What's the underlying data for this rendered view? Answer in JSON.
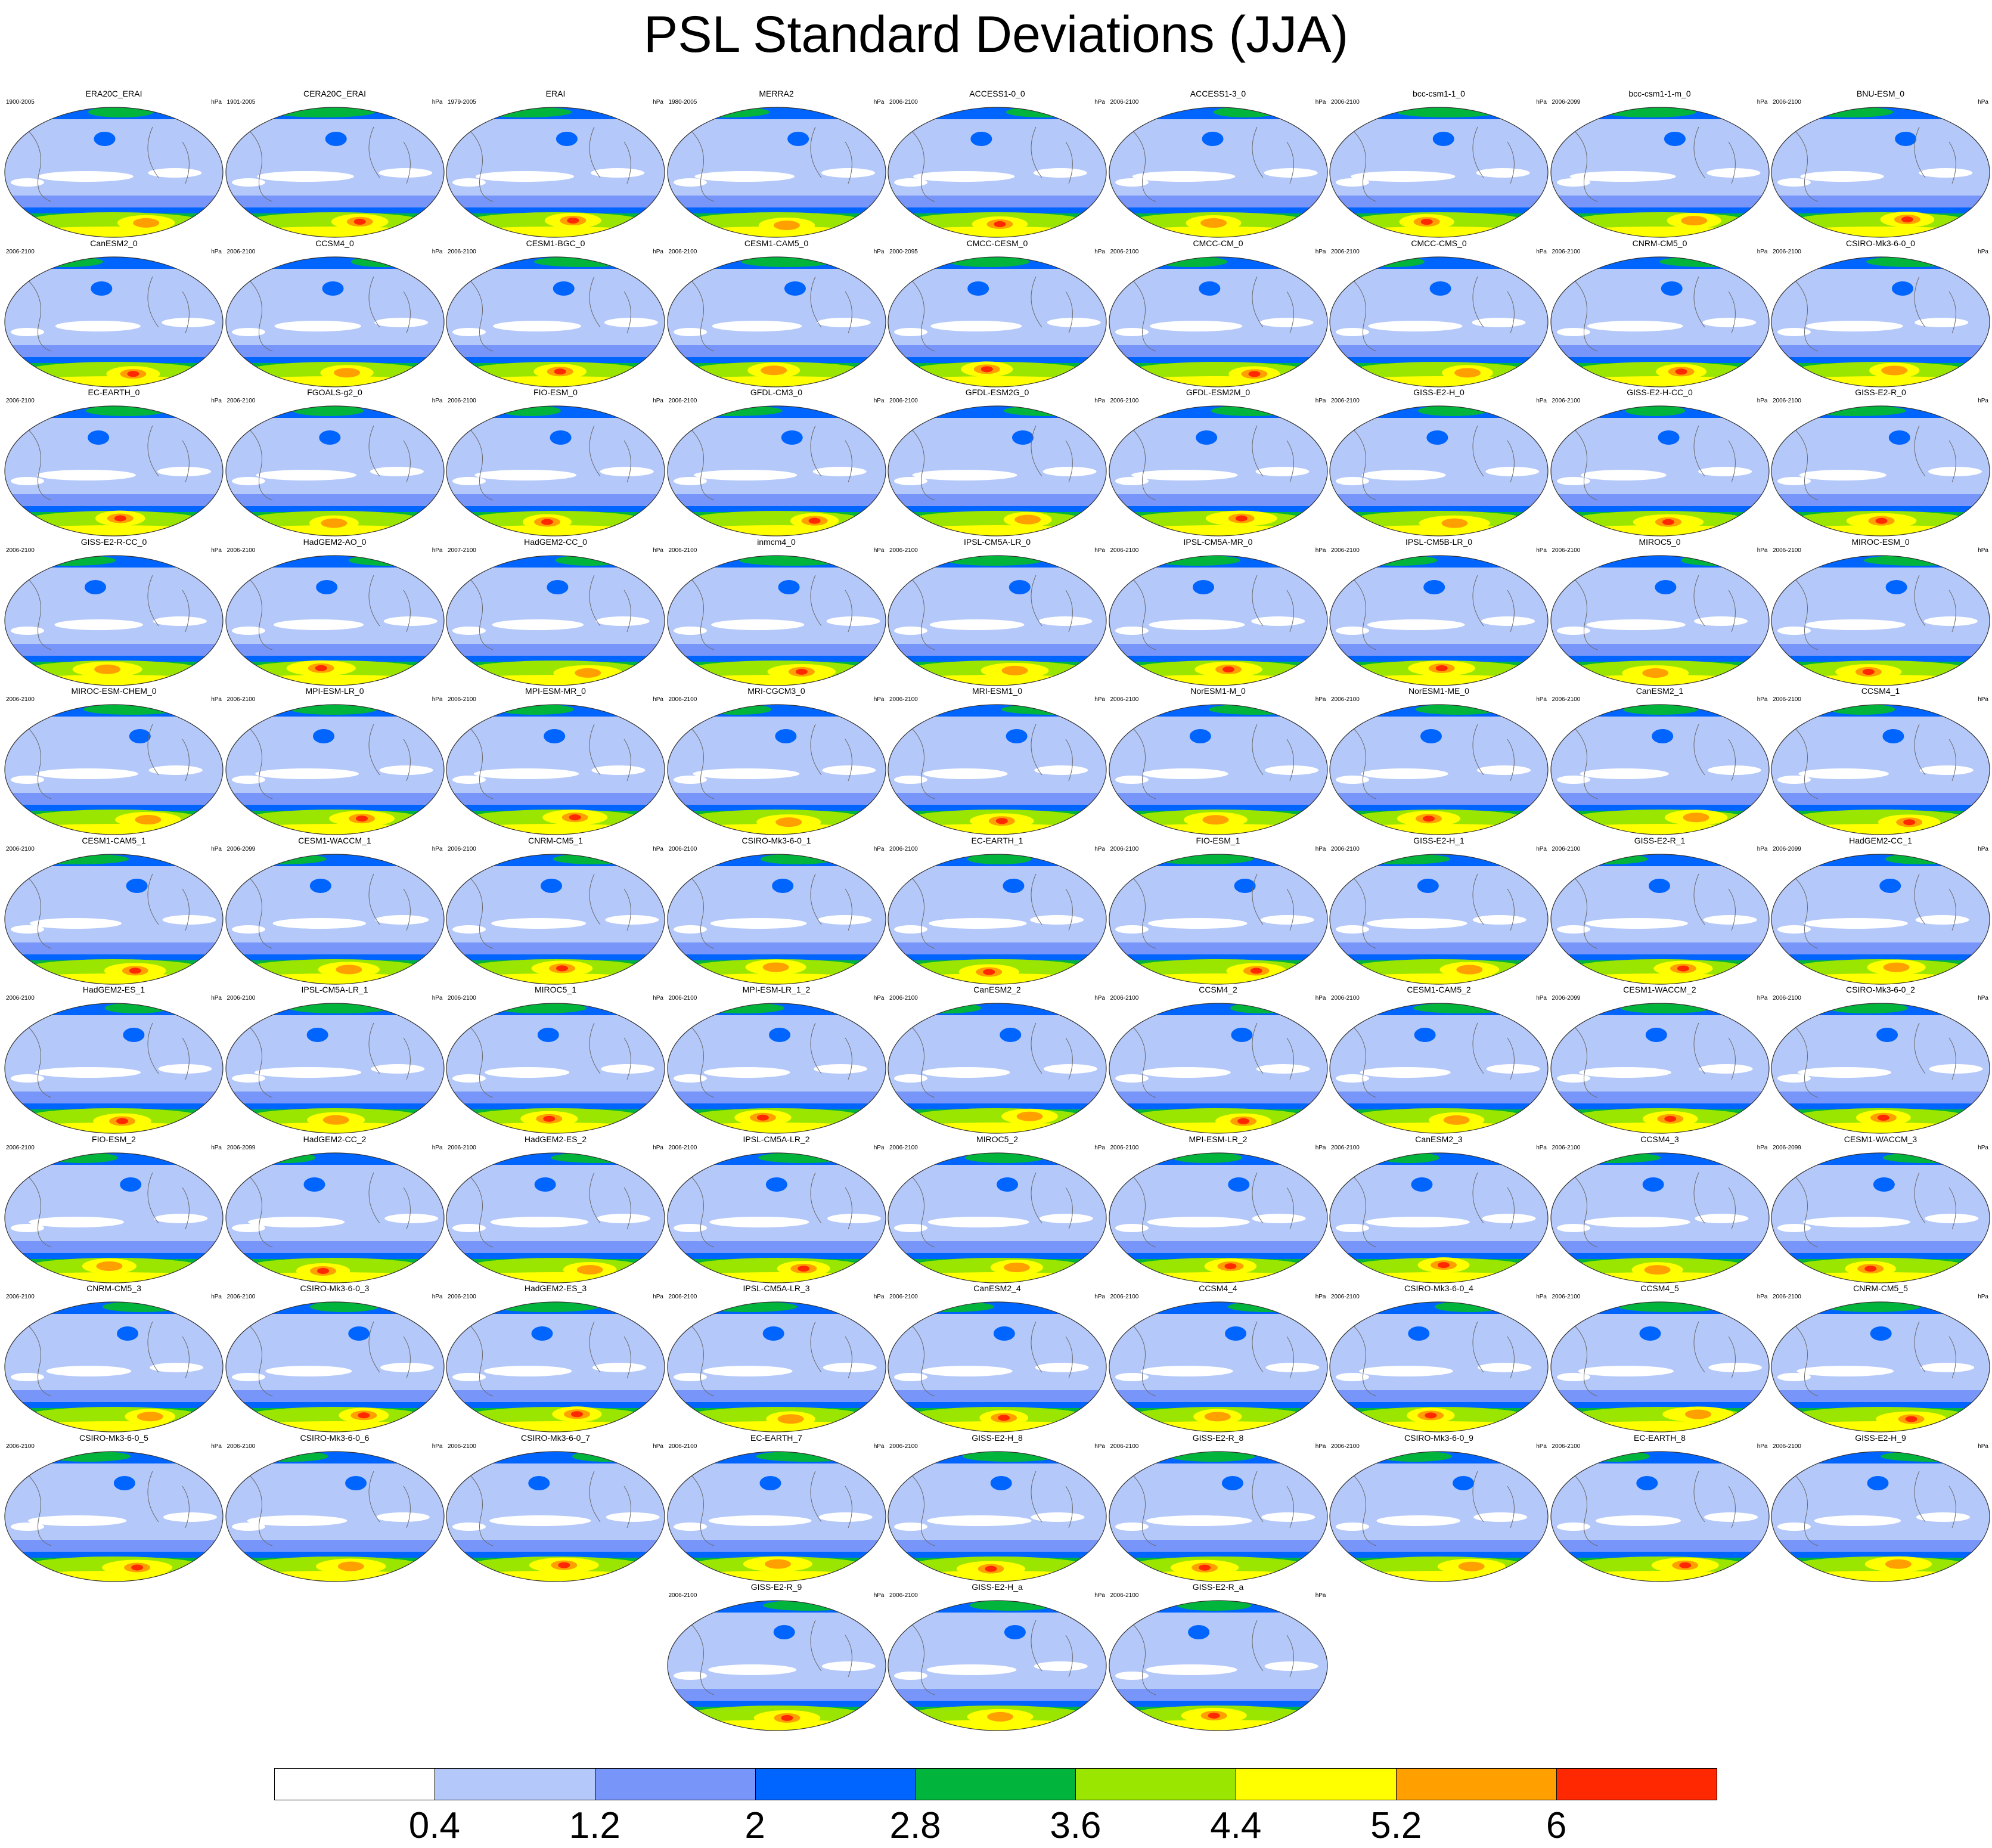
{
  "title": "PSL Standard Deviations (JJA)",
  "unit_label": "hPa",
  "colorbar": {
    "colors": [
      "#ffffff",
      "#b4c8fa",
      "#7896fa",
      "#0064ff",
      "#00b43c",
      "#9be600",
      "#ffff00",
      "#ffa000",
      "#ff2800"
    ],
    "labels": [
      "0.4",
      "1.2",
      "2",
      "2.8",
      "3.6",
      "4.4",
      "5.2",
      "6"
    ]
  },
  "panels": [
    {
      "title": "ERA20C_ERAI",
      "years": "1900-2005"
    },
    {
      "title": "CERA20C_ERAI",
      "years": "1901-2005"
    },
    {
      "title": "ERAI",
      "years": "1979-2005"
    },
    {
      "title": "MERRA2",
      "years": "1980-2005"
    },
    {
      "title": "ACCESS1-0_0",
      "years": "2006-2100"
    },
    {
      "title": "ACCESS1-3_0",
      "years": "2006-2100"
    },
    {
      "title": "bcc-csm1-1_0",
      "years": "2006-2100"
    },
    {
      "title": "bcc-csm1-1-m_0",
      "years": "2006-2099"
    },
    {
      "title": "BNU-ESM_0",
      "years": "2006-2100"
    },
    {
      "title": "CanESM2_0",
      "years": "2006-2100"
    },
    {
      "title": "CCSM4_0",
      "years": "2006-2100"
    },
    {
      "title": "CESM1-BGC_0",
      "years": "2006-2100"
    },
    {
      "title": "CESM1-CAM5_0",
      "years": "2006-2100"
    },
    {
      "title": "CMCC-CESM_0",
      "years": "2000-2095"
    },
    {
      "title": "CMCC-CM_0",
      "years": "2006-2100"
    },
    {
      "title": "CMCC-CMS_0",
      "years": "2006-2100"
    },
    {
      "title": "CNRM-CM5_0",
      "years": "2006-2100"
    },
    {
      "title": "CSIRO-Mk3-6-0_0",
      "years": "2006-2100"
    },
    {
      "title": "EC-EARTH_0",
      "years": "2006-2100"
    },
    {
      "title": "FGOALS-g2_0",
      "years": "2006-2100"
    },
    {
      "title": "FIO-ESM_0",
      "years": "2006-2100"
    },
    {
      "title": "GFDL-CM3_0",
      "years": "2006-2100"
    },
    {
      "title": "GFDL-ESM2G_0",
      "years": "2006-2100"
    },
    {
      "title": "GFDL-ESM2M_0",
      "years": "2006-2100"
    },
    {
      "title": "GISS-E2-H_0",
      "years": "2006-2100"
    },
    {
      "title": "GISS-E2-H-CC_0",
      "years": "2006-2100"
    },
    {
      "title": "GISS-E2-R_0",
      "years": "2006-2100"
    },
    {
      "title": "GISS-E2-R-CC_0",
      "years": "2006-2100"
    },
    {
      "title": "HadGEM2-AO_0",
      "years": "2006-2100"
    },
    {
      "title": "HadGEM2-CC_0",
      "years": "2007-2100"
    },
    {
      "title": "inmcm4_0",
      "years": "2006-2100"
    },
    {
      "title": "IPSL-CM5A-LR_0",
      "years": "2006-2100"
    },
    {
      "title": "IPSL-CM5A-MR_0",
      "years": "2006-2100"
    },
    {
      "title": "IPSL-CM5B-LR_0",
      "years": "2006-2100"
    },
    {
      "title": "MIROC5_0",
      "years": "2006-2100"
    },
    {
      "title": "MIROC-ESM_0",
      "years": "2006-2100"
    },
    {
      "title": "MIROC-ESM-CHEM_0",
      "years": "2006-2100"
    },
    {
      "title": "MPI-ESM-LR_0",
      "years": "2006-2100"
    },
    {
      "title": "MPI-ESM-MR_0",
      "years": "2006-2100"
    },
    {
      "title": "MRI-CGCM3_0",
      "years": "2006-2100"
    },
    {
      "title": "MRI-ESM1_0",
      "years": "2006-2100"
    },
    {
      "title": "NorESM1-M_0",
      "years": "2006-2100"
    },
    {
      "title": "NorESM1-ME_0",
      "years": "2006-2100"
    },
    {
      "title": "CanESM2_1",
      "years": "2006-2100"
    },
    {
      "title": "CCSM4_1",
      "years": "2006-2100"
    },
    {
      "title": "CESM1-CAM5_1",
      "years": "2006-2100"
    },
    {
      "title": "CESM1-WACCM_1",
      "years": "2006-2099"
    },
    {
      "title": "CNRM-CM5_1",
      "years": "2006-2100"
    },
    {
      "title": "CSIRO-Mk3-6-0_1",
      "years": "2006-2100"
    },
    {
      "title": "EC-EARTH_1",
      "years": "2006-2100"
    },
    {
      "title": "FIO-ESM_1",
      "years": "2006-2100"
    },
    {
      "title": "GISS-E2-H_1",
      "years": "2006-2100"
    },
    {
      "title": "GISS-E2-R_1",
      "years": "2006-2100"
    },
    {
      "title": "HadGEM2-CC_1",
      "years": "2006-2099"
    },
    {
      "title": "HadGEM2-ES_1",
      "years": "2006-2100"
    },
    {
      "title": "IPSL-CM5A-LR_1",
      "years": "2006-2100"
    },
    {
      "title": "MIROC5_1",
      "years": "2006-2100"
    },
    {
      "title": "MPI-ESM-LR_1_2",
      "years": "2006-2100"
    },
    {
      "title": "CanESM2_2",
      "years": "2006-2100"
    },
    {
      "title": "CCSM4_2",
      "years": "2006-2100"
    },
    {
      "title": "CESM1-CAM5_2",
      "years": "2006-2100"
    },
    {
      "title": "CESM1-WACCM_2",
      "years": "2006-2099"
    },
    {
      "title": "CSIRO-Mk3-6-0_2",
      "years": "2006-2100"
    },
    {
      "title": "FIO-ESM_2",
      "years": "2006-2100"
    },
    {
      "title": "HadGEM2-CC_2",
      "years": "2006-2099"
    },
    {
      "title": "HadGEM2-ES_2",
      "years": "2006-2100"
    },
    {
      "title": "IPSL-CM5A-LR_2",
      "years": "2006-2100"
    },
    {
      "title": "MIROC5_2",
      "years": "2006-2100"
    },
    {
      "title": "MPI-ESM-LR_2",
      "years": "2006-2100"
    },
    {
      "title": "CanESM2_3",
      "years": "2006-2100"
    },
    {
      "title": "CCSM4_3",
      "years": "2006-2100"
    },
    {
      "title": "CESM1-WACCM_3",
      "years": "2006-2099"
    },
    {
      "title": "CNRM-CM5_3",
      "years": "2006-2100"
    },
    {
      "title": "CSIRO-Mk3-6-0_3",
      "years": "2006-2100"
    },
    {
      "title": "HadGEM2-ES_3",
      "years": "2006-2100"
    },
    {
      "title": "IPSL-CM5A-LR_3",
      "years": "2006-2100"
    },
    {
      "title": "CanESM2_4",
      "years": "2006-2100"
    },
    {
      "title": "CCSM4_4",
      "years": "2006-2100"
    },
    {
      "title": "CSIRO-Mk3-6-0_4",
      "years": "2006-2100"
    },
    {
      "title": "CCSM4_5",
      "years": "2006-2100"
    },
    {
      "title": "CNRM-CM5_5",
      "years": "2006-2100"
    },
    {
      "title": "CSIRO-Mk3-6-0_5",
      "years": "2006-2100"
    },
    {
      "title": "CSIRO-Mk3-6-0_6",
      "years": "2006-2100"
    },
    {
      "title": "CSIRO-Mk3-6-0_7",
      "years": "2006-2100"
    },
    {
      "title": "EC-EARTH_7",
      "years": "2006-2100"
    },
    {
      "title": "GISS-E2-H_8",
      "years": "2006-2100"
    },
    {
      "title": "GISS-E2-R_8",
      "years": "2006-2100"
    },
    {
      "title": "CSIRO-Mk3-6-0_9",
      "years": "2006-2100"
    },
    {
      "title": "EC-EARTH_8",
      "years": "2006-2100"
    },
    {
      "title": "GISS-E2-H_9",
      "years": "2006-2100"
    },
    {
      "title": "GISS-E2-R_9",
      "years": "2006-2100"
    },
    {
      "title": "GISS-E2-H_a",
      "years": "2006-2100"
    },
    {
      "title": "GISS-E2-R_a",
      "years": "2006-2100"
    }
  ]
}
